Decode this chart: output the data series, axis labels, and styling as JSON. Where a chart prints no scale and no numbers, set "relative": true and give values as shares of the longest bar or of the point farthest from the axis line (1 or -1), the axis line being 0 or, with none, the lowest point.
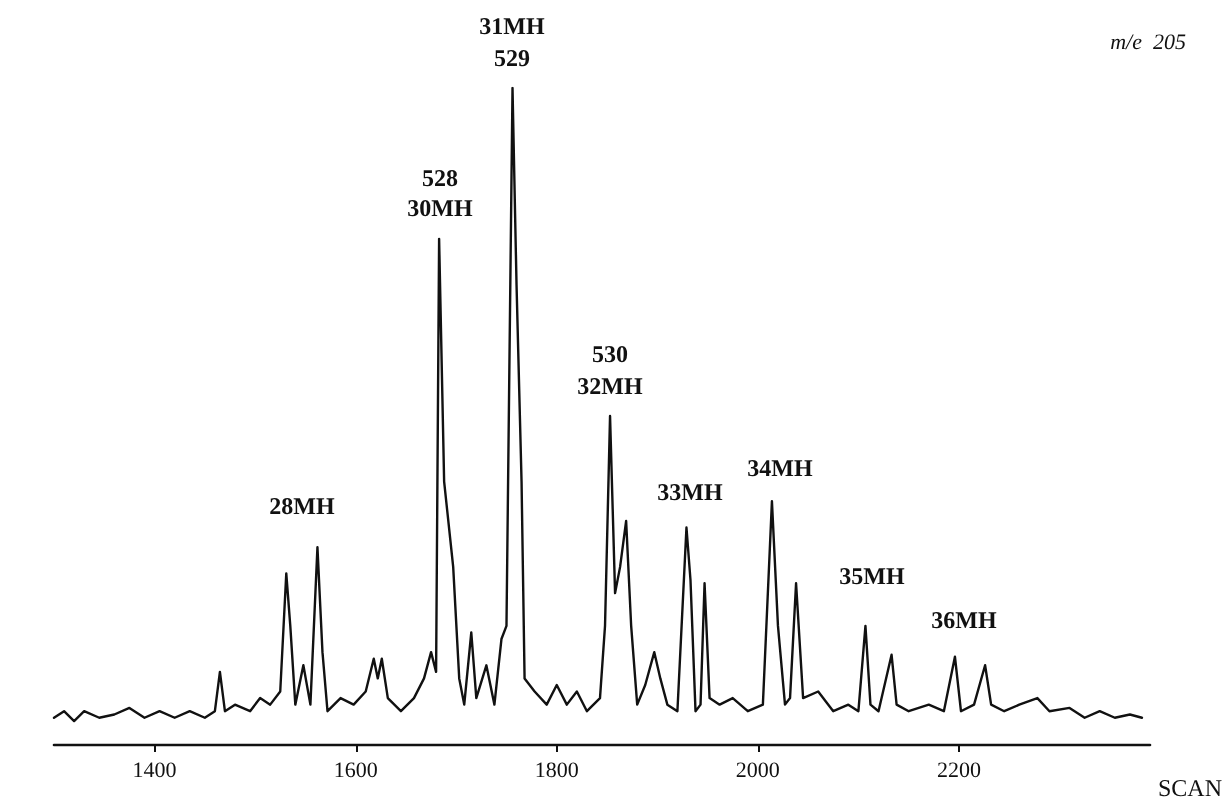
{
  "chart_data": {
    "type": "line",
    "relative": true,
    "xlabel": "SCAN",
    "xlim": [
      1300,
      2390
    ],
    "xticks": [
      1400,
      1600,
      1800,
      2000,
      2200
    ],
    "grid": false,
    "marker": "none",
    "line_style": "solid",
    "x": [
      1300,
      1310,
      1320,
      1330,
      1345,
      1360,
      1375,
      1390,
      1405,
      1420,
      1435,
      1450,
      1460,
      1465,
      1470,
      1480,
      1495,
      1505,
      1515,
      1525,
      1531,
      1535,
      1540,
      1548,
      1555,
      1562,
      1567,
      1572,
      1585,
      1598,
      1610,
      1618,
      1622,
      1626,
      1632,
      1645,
      1658,
      1668,
      1675,
      1680,
      1683,
      1688,
      1697,
      1703,
      1708,
      1715,
      1720,
      1730,
      1738,
      1745,
      1750,
      1756,
      1760,
      1765,
      1768,
      1778,
      1790,
      1800,
      1810,
      1820,
      1830,
      1843,
      1848,
      1853,
      1858,
      1863,
      1869,
      1874,
      1880,
      1888,
      1897,
      1903,
      1910,
      1920,
      1929,
      1933,
      1938,
      1943,
      1947,
      1952,
      1962,
      1975,
      1990,
      2005,
      2014,
      2020,
      2027,
      2032,
      2038,
      2045,
      2060,
      2075,
      2090,
      2100,
      2107,
      2112,
      2120,
      2133,
      2138,
      2150,
      2170,
      2185,
      2196,
      2202,
      2215,
      2226,
      2232,
      2245,
      2260,
      2278,
      2290,
      2310,
      2325,
      2340,
      2355,
      2370,
      2382
    ],
    "series": [
      {
        "color": "#111111",
        "values": [
          0.04,
          0.05,
          0.035,
          0.05,
          0.04,
          0.045,
          0.055,
          0.04,
          0.05,
          0.04,
          0.05,
          0.04,
          0.05,
          0.11,
          0.05,
          0.06,
          0.05,
          0.07,
          0.06,
          0.08,
          0.26,
          0.18,
          0.06,
          0.12,
          0.06,
          0.3,
          0.14,
          0.05,
          0.07,
          0.06,
          0.08,
          0.13,
          0.1,
          0.13,
          0.07,
          0.05,
          0.07,
          0.1,
          0.14,
          0.11,
          0.77,
          0.4,
          0.27,
          0.1,
          0.06,
          0.17,
          0.07,
          0.12,
          0.06,
          0.16,
          0.18,
          1.0,
          0.7,
          0.4,
          0.1,
          0.08,
          0.06,
          0.09,
          0.06,
          0.08,
          0.05,
          0.07,
          0.18,
          0.5,
          0.23,
          0.27,
          0.34,
          0.18,
          0.06,
          0.09,
          0.14,
          0.1,
          0.06,
          0.05,
          0.33,
          0.25,
          0.05,
          0.06,
          0.245,
          0.07,
          0.06,
          0.07,
          0.05,
          0.06,
          0.37,
          0.18,
          0.06,
          0.07,
          0.245,
          0.07,
          0.08,
          0.05,
          0.06,
          0.05,
          0.18,
          0.06,
          0.05,
          0.136,
          0.06,
          0.05,
          0.06,
          0.05,
          0.133,
          0.05,
          0.06,
          0.12,
          0.06,
          0.05,
          0.06,
          0.07,
          0.05,
          0.055,
          0.04,
          0.05,
          0.04,
          0.045,
          0.04
        ]
      }
    ],
    "annotations": [
      "28MH",
      "528",
      "30MH",
      "31MH",
      "529",
      "530",
      "32MH",
      "33MH",
      "34MH",
      "35MH",
      "36MH",
      "m/e  205"
    ]
  }
}
